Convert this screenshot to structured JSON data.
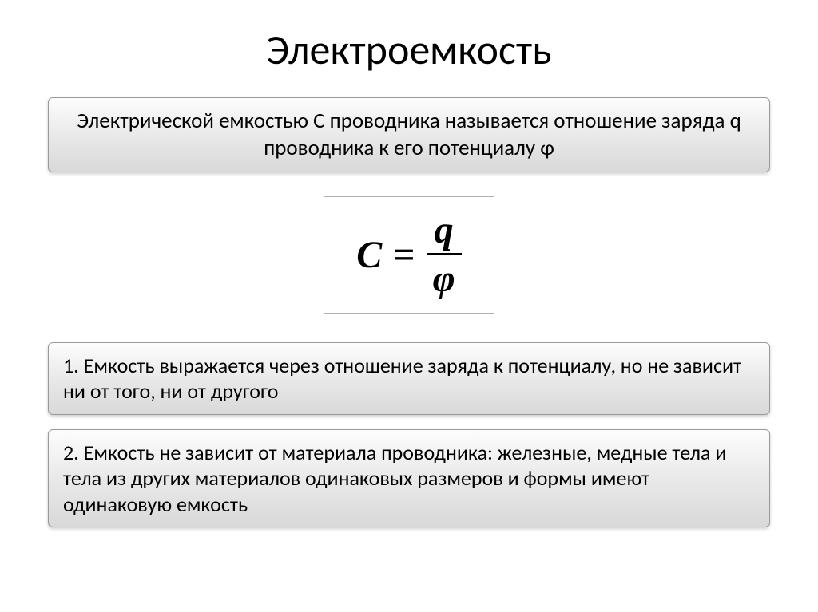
{
  "title": "Электроемкость",
  "definition": "Электрической емкостью С проводника называется отношение заряда q проводника к его потенциалу φ",
  "formula": {
    "lhs": "C",
    "eq": "=",
    "numerator": "q",
    "denominator": "φ"
  },
  "points": [
    "1. Емкость выражается через отношение заряда к потенциалу, но не зависит ни от того, ни от другого",
    "2. Емкость не зависит от материала проводника: железные, медные тела и тела из других материалов одинаковых размеров и формы имеют одинаковую емкость"
  ],
  "style": {
    "background": "#ffffff",
    "title_fontsize": 52,
    "body_fontsize": 27,
    "point_fontsize": 26,
    "formula_fontsize": 48,
    "box_border_color": "#9a9a9a",
    "box_gradient_top": "#fdfdfd",
    "box_gradient_bottom": "#d9d9d9",
    "formula_border_color": "#b0b0b0",
    "text_color": "#000000",
    "font_family_body": "Calibri, Arial, sans-serif",
    "font_family_formula": "Times New Roman, serif"
  }
}
